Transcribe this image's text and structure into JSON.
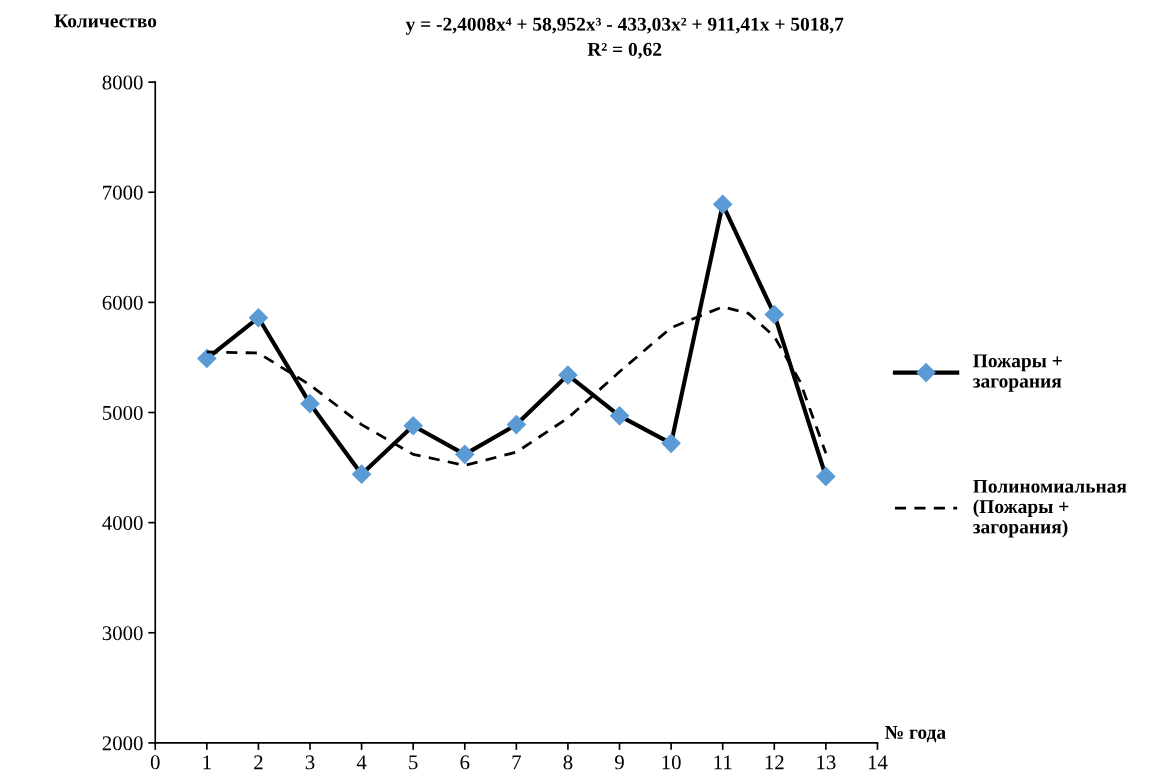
{
  "chart_data": {
    "type": "line",
    "ylabel": "Количество",
    "xlabel": "№ года",
    "annotations": [
      "y = -2,4008x⁴ + 58,952x³ - 433,03x² + 911,41x + 5018,7",
      "R² = 0,62"
    ],
    "xlim": [
      0,
      14
    ],
    "xticks": [
      0,
      1,
      2,
      3,
      4,
      5,
      6,
      7,
      8,
      9,
      10,
      11,
      12,
      13,
      14
    ],
    "ylim": [
      2000,
      8000
    ],
    "yticks": [
      2000,
      3000,
      4000,
      5000,
      6000,
      7000,
      8000
    ],
    "grid": false,
    "legend": "right",
    "series": [
      {
        "name": "Пожары +\nзагорания",
        "color": "#000000",
        "colors": [
          "#5b9bd5",
          "#5b9bd5",
          "#5b9bd5",
          "#5b9bd5",
          "#5b9bd5",
          "#5b9bd5",
          "#5b9bd5",
          "#5b9bd5",
          "#5b9bd5",
          "#5b9bd5",
          "#5b9bd5",
          "#5b9bd5",
          "#5b9bd5"
        ],
        "marker": "diamond",
        "line_style": "solid",
        "x": [
          1,
          2,
          3,
          4,
          5,
          6,
          7,
          8,
          9,
          10,
          11,
          12,
          13
        ],
        "values": [
          5490,
          5860,
          5080,
          4440,
          4880,
          4620,
          4890,
          5340,
          4970,
          4720,
          6890,
          5890,
          4420
        ]
      },
      {
        "name": "Полиномиальная\n(Пожары +\nзагорания)",
        "color": "#000000",
        "marker": "none",
        "line_style": "dashed",
        "x": [
          1,
          2,
          3,
          4,
          5,
          6,
          7,
          8,
          9,
          10,
          11,
          11.5,
          12,
          12.5,
          13
        ],
        "values": [
          5550,
          5540,
          5250,
          4890,
          4620,
          4520,
          4640,
          4950,
          5370,
          5770,
          5960,
          5900,
          5690,
          5280,
          4630
        ]
      }
    ]
  }
}
